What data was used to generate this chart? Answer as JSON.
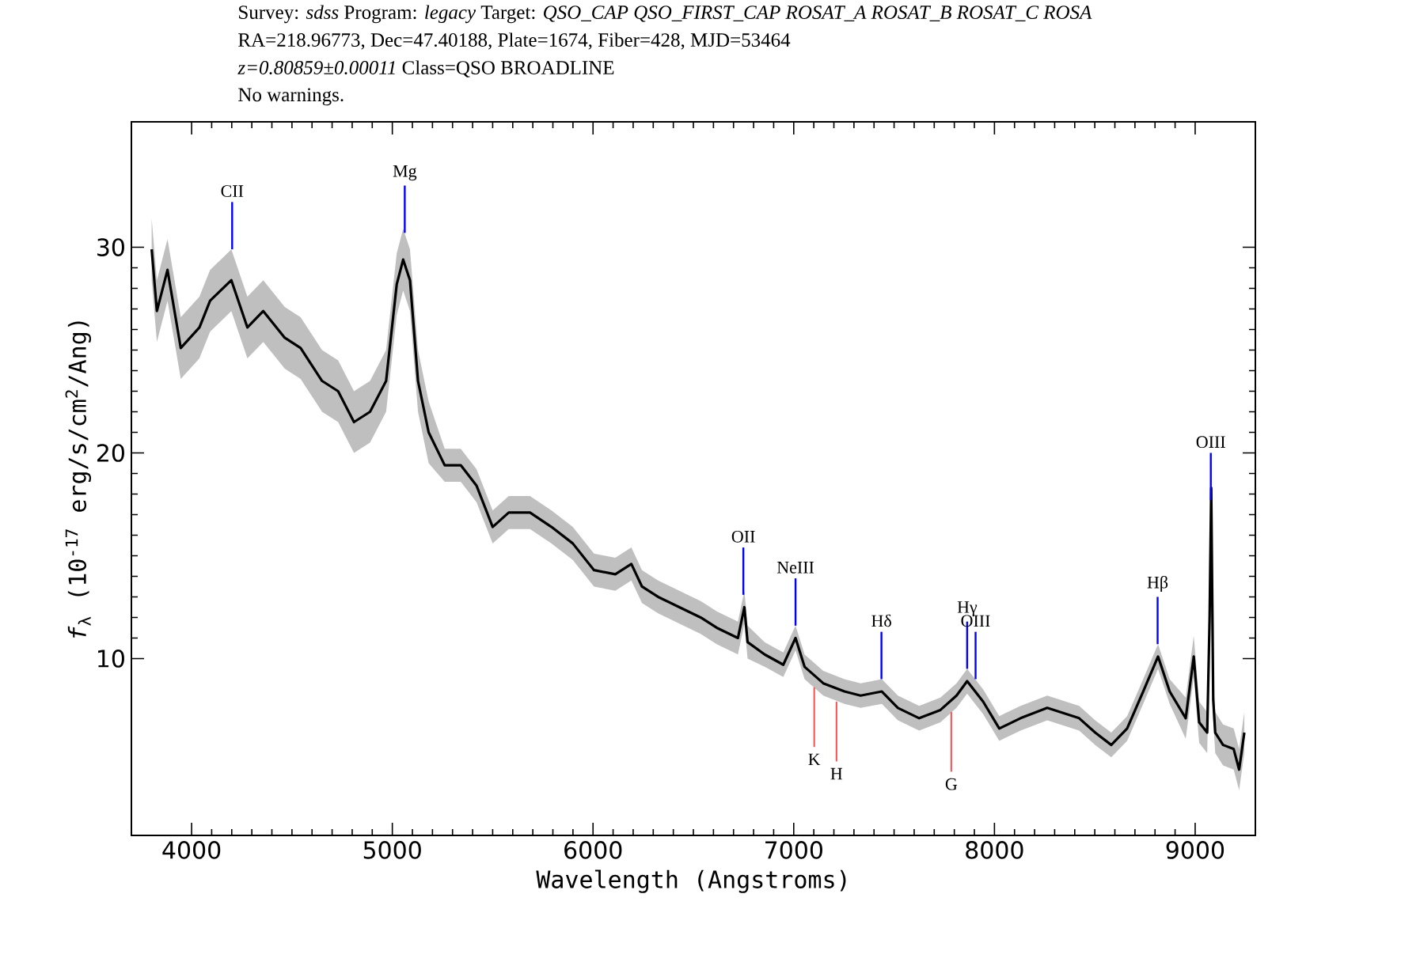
{
  "chart_data": {
    "type": "line",
    "title": "Survey: *sdss* Program: *legacy* Target: *QSO_CAP QSO_FIRST_CAP ROSAT_A ROSAT_B ROSAT_C ROSA*",
    "subtitle": "RA=218.96773, Dec=47.40188, Plate=1674, Fiber=428, MJD=53464",
    "xlabel": "Wavelength (Angstroms)",
    "ylabel": "*f*$_{λ}$ (10$^{-17}$ erg/s/cm$^{2}$/Ang)",
    "xlim": [
      3700,
      9300
    ],
    "ylim": [
      1.4,
      36.1
    ],
    "xticks": [
      4000,
      5000,
      6000,
      7000,
      8000,
      9000
    ],
    "yticks": [
      10,
      20,
      30
    ],
    "grid": false,
    "marker": "none",
    "line_style": "solid",
    "series": [
      {
        "color": "#000000",
        "x": [
          3801,
          3827,
          3880,
          3946,
          4039,
          4092,
          4198,
          4278,
          4357,
          4464,
          4543,
          4650,
          4730,
          4809,
          4889,
          4969,
          5022,
          5054,
          5088,
          5128,
          5181,
          5261,
          5341,
          5420,
          5500,
          5580,
          5686,
          5793,
          5899,
          6005,
          6111,
          6191,
          6244,
          6324,
          6430,
          6536,
          6616,
          6722,
          6754,
          6770,
          6855,
          6948,
          7009,
          7054,
          7147,
          7253,
          7333,
          7439,
          7519,
          7625,
          7731,
          7811,
          7864,
          7944,
          8024,
          8130,
          8263,
          8422,
          8502,
          8582,
          8661,
          8741,
          8815,
          8873,
          8953,
          8993,
          9020,
          9060,
          9072,
          9080,
          9090,
          9100,
          9139,
          9192,
          9219,
          9245
        ],
        "values": [
          29.9,
          26.9,
          28.9,
          25.1,
          26.1,
          27.4,
          28.4,
          26.1,
          26.9,
          25.6,
          25.1,
          23.5,
          23.0,
          21.5,
          22.0,
          23.5,
          28.2,
          29.4,
          28.4,
          23.5,
          21.0,
          19.4,
          19.4,
          18.4,
          16.4,
          17.1,
          17.1,
          16.4,
          15.6,
          14.3,
          14.1,
          14.6,
          13.5,
          13.0,
          12.5,
          12.0,
          11.5,
          11.0,
          12.5,
          10.8,
          10.2,
          9.7,
          11.0,
          9.6,
          8.8,
          8.4,
          8.2,
          8.4,
          7.6,
          7.1,
          7.5,
          8.2,
          8.9,
          7.9,
          6.6,
          7.1,
          7.6,
          7.1,
          6.4,
          5.8,
          6.6,
          8.4,
          10.1,
          8.4,
          7.1,
          10.1,
          6.9,
          6.4,
          12.0,
          18.3,
          8.0,
          6.4,
          5.8,
          5.6,
          4.6,
          6.4
        ],
        "lower": [
          28.4,
          25.4,
          27.4,
          23.6,
          24.6,
          25.9,
          26.9,
          24.6,
          25.4,
          24.1,
          23.6,
          22.0,
          21.5,
          20.0,
          20.5,
          22.0,
          26.7,
          27.9,
          26.9,
          22.0,
          19.5,
          18.6,
          18.6,
          17.6,
          15.6,
          16.3,
          16.3,
          15.6,
          14.8,
          13.5,
          13.3,
          13.8,
          12.7,
          12.2,
          11.7,
          11.2,
          10.7,
          10.2,
          11.7,
          10.0,
          9.6,
          9.1,
          10.4,
          9.0,
          8.2,
          7.8,
          7.6,
          7.8,
          7.0,
          6.5,
          6.9,
          7.6,
          8.3,
          7.3,
          6.0,
          6.5,
          7.0,
          6.5,
          5.8,
          5.2,
          6.0,
          7.8,
          9.5,
          7.8,
          6.1,
          9.1,
          5.9,
          5.4,
          11.0,
          17.3,
          7.0,
          5.4,
          4.8,
          4.6,
          3.6,
          5.4
        ],
        "upper": [
          31.4,
          28.4,
          30.4,
          26.6,
          27.6,
          28.9,
          29.9,
          27.6,
          28.4,
          27.1,
          26.6,
          25.0,
          24.5,
          23.0,
          23.5,
          25.0,
          29.7,
          30.9,
          29.9,
          25.0,
          22.5,
          20.2,
          20.2,
          19.2,
          17.2,
          17.9,
          17.9,
          17.2,
          16.4,
          15.1,
          14.9,
          15.4,
          14.3,
          13.8,
          13.3,
          12.8,
          12.3,
          11.8,
          13.3,
          11.6,
          10.8,
          10.3,
          11.6,
          10.2,
          9.4,
          9.0,
          8.8,
          9.0,
          8.2,
          7.7,
          8.1,
          8.8,
          9.5,
          8.5,
          7.2,
          7.7,
          8.2,
          7.7,
          7.0,
          6.4,
          7.2,
          9.0,
          10.7,
          9.0,
          8.1,
          11.1,
          7.9,
          7.4,
          13.0,
          19.3,
          9.0,
          7.4,
          6.8,
          6.6,
          5.6,
          7.4
        ]
      }
    ],
    "annotations": [
      "*z=0.80859±0.00011* Class=QSO BROADLINE",
      "No warnings.",
      {
        "text": "CII",
        "x": 4202,
        "y": 29.9
      },
      {
        "text": "Mg",
        "x": 5062,
        "y": 30.7
      },
      {
        "text": "OII",
        "x": 6749,
        "y": 13.1
      },
      {
        "text": "NeIII",
        "x": 7009,
        "y": 11.6
      },
      {
        "text": "Hδ",
        "x": 7437,
        "y": 9.0
      },
      {
        "text": "Hγ",
        "x": 7864,
        "y": 9.5
      },
      {
        "text": "OIII",
        "x": 7906,
        "y": 9.0
      },
      {
        "text": "Hβ",
        "x": 8813,
        "y": 10.7
      },
      {
        "text": "OIII",
        "x": 9078,
        "y": 17.7
      },
      {
        "text": "K",
        "x": 7102,
        "y": 8.6
      },
      {
        "text": "H",
        "x": 7213,
        "y": 7.9
      },
      {
        "text": "G",
        "x": 7785,
        "y": 7.4
      }
    ]
  }
}
